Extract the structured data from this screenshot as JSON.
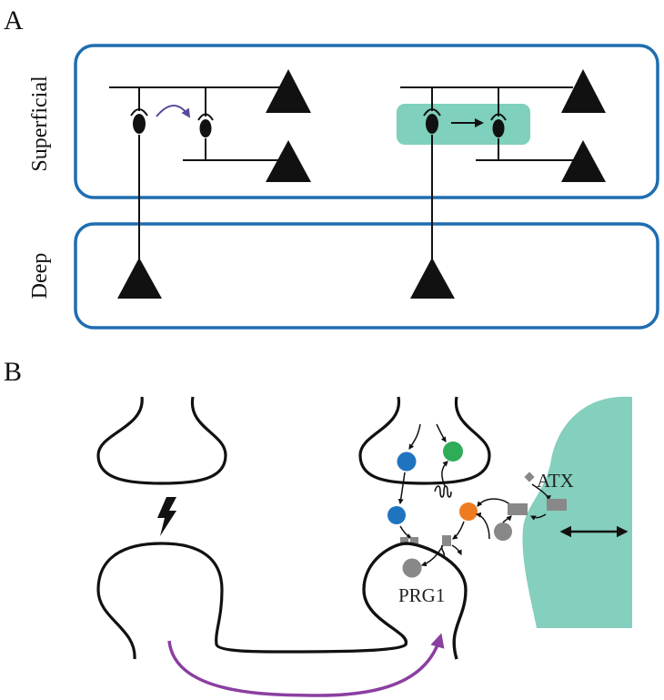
{
  "panel_a": {
    "letter": "A",
    "layers": [
      {
        "label": "Superficial"
      },
      {
        "label": "Deep"
      }
    ]
  },
  "panel_b": {
    "letter": "B",
    "labels": {
      "enzyme": "ATX",
      "receptor": "PRG1"
    }
  },
  "colors": {
    "layer_border": "#1f6db0",
    "glia": "#84cfbd",
    "highlight": "#7fd0bc",
    "curved_arrow_a": "#5a4a9c",
    "curved_arrow_b": "#8b3fa0",
    "blue_molecule": "#1f74c0",
    "green_molecule": "#2eac57",
    "orange_molecule": "#ee7b1f",
    "gray_molecule": "#888888"
  }
}
